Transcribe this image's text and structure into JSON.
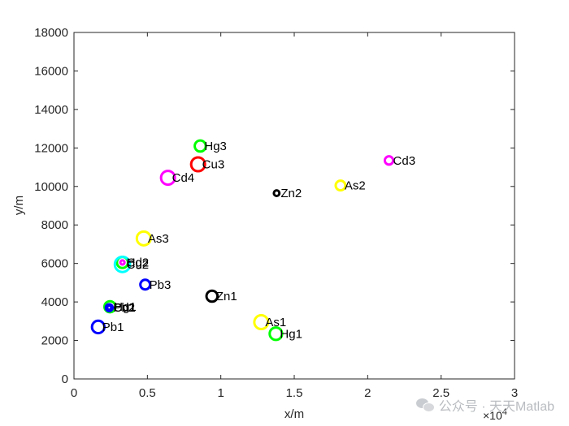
{
  "chart_data": {
    "type": "scatter",
    "xlabel": "x/m",
    "ylabel": "y/m",
    "xlim": [
      0,
      30000
    ],
    "ylim": [
      0,
      18000
    ],
    "x_exponent_label": "×10",
    "x_exponent_power": "4",
    "x_tick_values": [
      0,
      5000,
      10000,
      15000,
      20000,
      25000,
      30000
    ],
    "x_tick_labels": [
      "0",
      "0.5",
      "1",
      "1.5",
      "2",
      "2.5",
      "3"
    ],
    "y_tick_values": [
      0,
      2000,
      4000,
      6000,
      8000,
      10000,
      12000,
      14000,
      16000,
      18000
    ],
    "y_tick_labels": [
      "0",
      "2000",
      "4000",
      "6000",
      "8000",
      "10000",
      "12000",
      "14000",
      "16000",
      "18000"
    ],
    "grid": false,
    "points": [
      {
        "label": "Hg3",
        "x": 8600,
        "y": 12100,
        "color": "#00ff00",
        "size": 8
      },
      {
        "label": "Cu3",
        "x": 8450,
        "y": 11150,
        "color": "#ff0000",
        "size": 10
      },
      {
        "label": "Cd4",
        "x": 6400,
        "y": 10450,
        "color": "#ff00ff",
        "size": 10
      },
      {
        "label": "Cd3",
        "x": 21450,
        "y": 11350,
        "color": "#ff00ff",
        "size": 6
      },
      {
        "label": "Zn2",
        "x": 13800,
        "y": 9650,
        "color": "#000000",
        "size": 4
      },
      {
        "label": "As2",
        "x": 18150,
        "y": 10050,
        "color": "#ffff00",
        "size": 7
      },
      {
        "label": "As3",
        "x": 4750,
        "y": 7300,
        "color": "#ffff00",
        "size": 10
      },
      {
        "label": "Hg2",
        "x": 3300,
        "y": 6050,
        "color": "#00ff00",
        "size": 8
      },
      {
        "label": "Cu2",
        "x": 3300,
        "y": 5950,
        "color": "#00ffff",
        "size": 11
      },
      {
        "label": "Cd2",
        "x": 3300,
        "y": 6050,
        "color": "#ff00ff",
        "size": 3
      },
      {
        "label": "Pb3",
        "x": 4850,
        "y": 4900,
        "color": "#0000ff",
        "size": 7
      },
      {
        "label": "Zn1",
        "x": 9400,
        "y": 4300,
        "color": "#000000",
        "size": 8
      },
      {
        "label": "Hg1",
        "x": 2450,
        "y": 3750,
        "color": "#00ff00",
        "size": 8
      },
      {
        "label": "Cd1",
        "x": 2400,
        "y": 3700,
        "color": "#ff00ff",
        "size": 4
      },
      {
        "label": "Cu1",
        "x": 2400,
        "y": 3700,
        "color": "#0000ff",
        "size": 3
      },
      {
        "label": "Pb2",
        "x": 2400,
        "y": 3700,
        "color": "#0000ff",
        "size": 5
      },
      {
        "label": "Pb1",
        "x": 1650,
        "y": 2700,
        "color": "#0000ff",
        "size": 9
      },
      {
        "label": "As1",
        "x": 12750,
        "y": 2950,
        "color": "#ffff00",
        "size": 10
      },
      {
        "label": "Hg1",
        "x": 13750,
        "y": 2350,
        "color": "#00ff00",
        "size": 9
      }
    ]
  },
  "watermark": {
    "text": "公众号 · 天天Matlab"
  }
}
